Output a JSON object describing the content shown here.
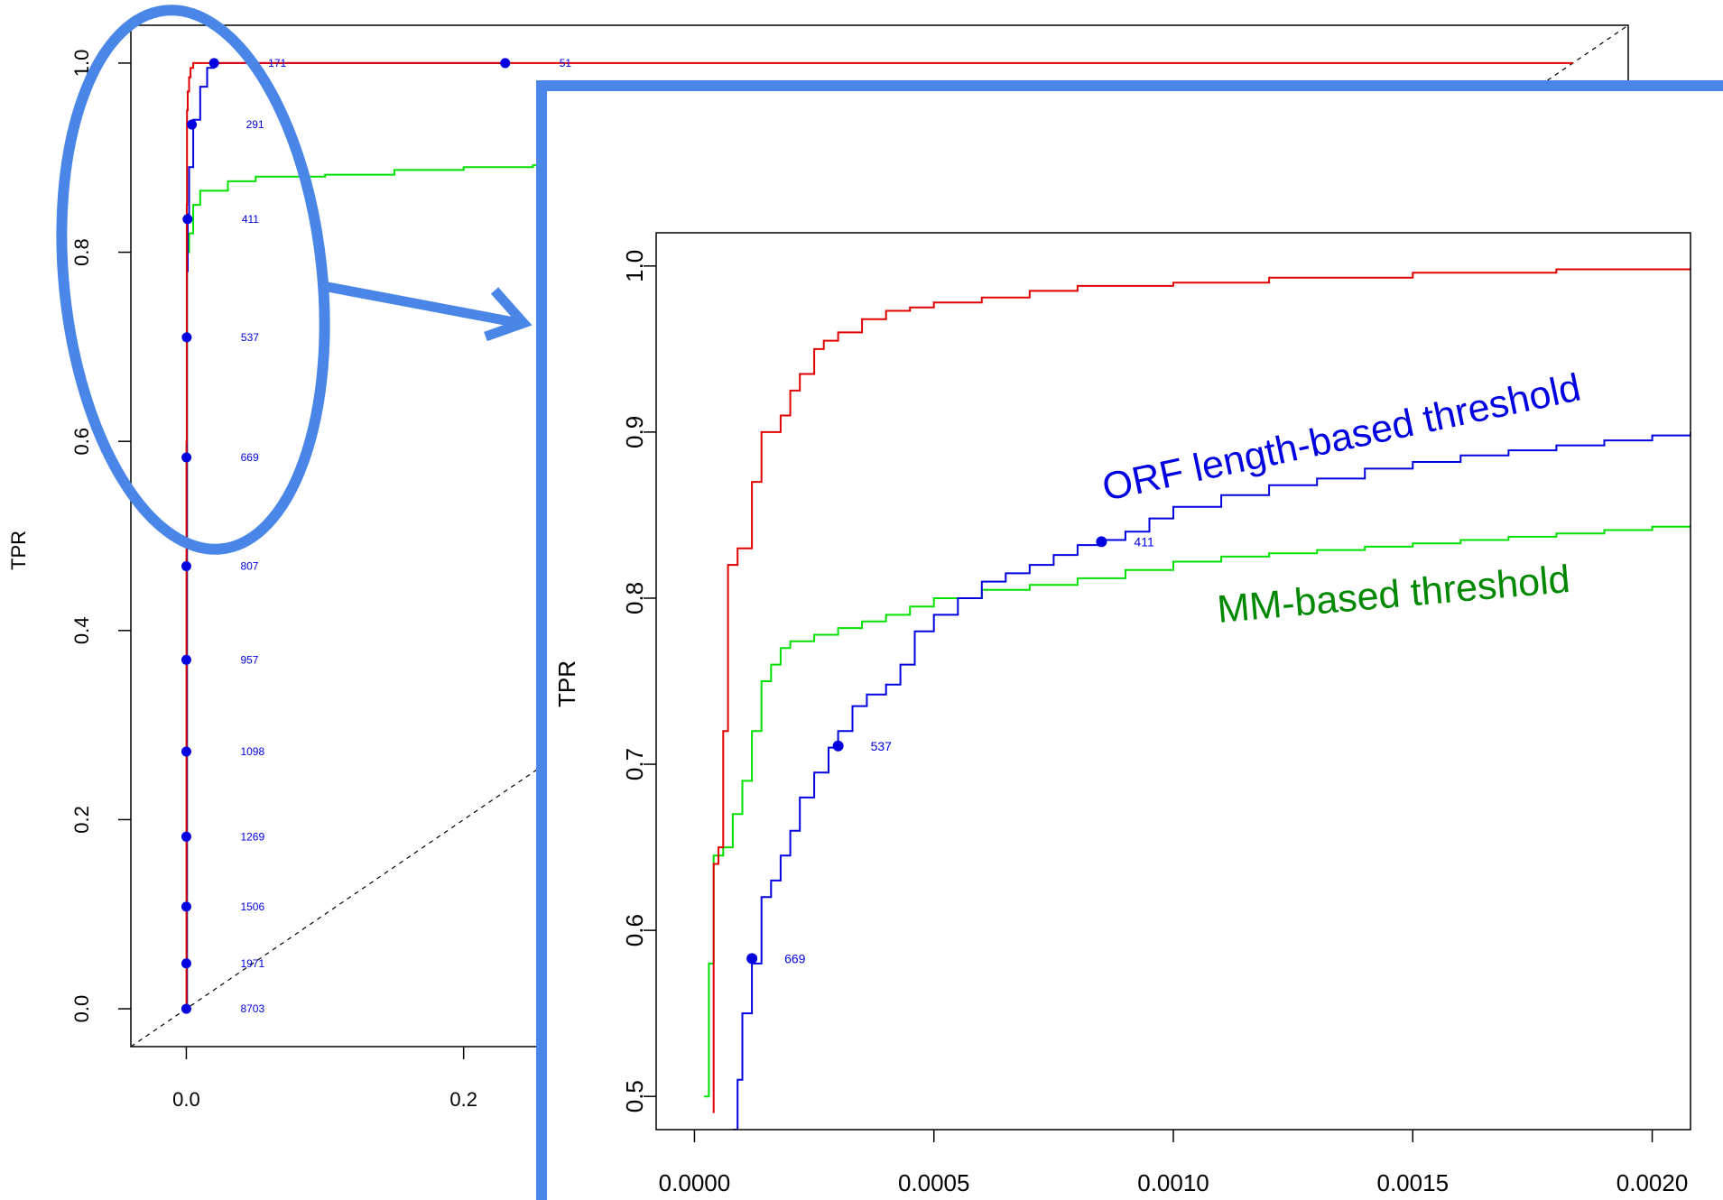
{
  "chart_data": [
    {
      "type": "line",
      "title": "",
      "xlabel": "",
      "ylabel": "TPR",
      "xlim": [
        -0.04,
        1.04
      ],
      "ylim": [
        -0.04,
        1.04
      ],
      "x_ticks": [
        0.0,
        0.2
      ],
      "x_tick_labels": [
        "0.0",
        "0.2"
      ],
      "y_ticks": [
        0.0,
        0.2,
        0.4,
        0.6,
        0.8,
        1.0
      ],
      "y_tick_labels": [
        "0.0",
        "0.2",
        "0.4",
        "0.6",
        "0.8",
        "1.0"
      ],
      "diagonal_reference": true,
      "series": [
        {
          "color": "#e00000",
          "x": [
            0.0,
            0.0001,
            0.0003,
            0.0005,
            0.001,
            0.002,
            0.003,
            0.005,
            0.5,
            0.93,
            1.0
          ],
          "y": [
            0.0,
            0.6,
            0.85,
            0.95,
            0.97,
            0.985,
            0.995,
            1.0,
            1.0,
            1.0,
            1.0
          ]
        },
        {
          "color": "#0000e0",
          "x": [
            0.0,
            0.0005,
            0.001,
            0.002,
            0.005,
            0.01,
            0.015,
            0.02,
            0.23
          ],
          "y": [
            0.0,
            0.78,
            0.84,
            0.89,
            0.94,
            0.975,
            0.995,
            1.0,
            1.0
          ]
        },
        {
          "color": "#00e000",
          "x": [
            0.0,
            0.0005,
            0.002,
            0.005,
            0.01,
            0.03,
            0.05,
            0.1,
            0.15,
            0.2,
            0.25,
            0.3
          ],
          "y": [
            0.0,
            0.8,
            0.82,
            0.85,
            0.865,
            0.875,
            0.88,
            0.882,
            0.887,
            0.89,
            0.892,
            0.893
          ]
        }
      ],
      "threshold_points": [
        {
          "label": "51",
          "x": 0.23,
          "y": 1.0
        },
        {
          "label": "171",
          "x": 0.02,
          "y": 1.0
        },
        {
          "label": "291",
          "x": 0.004,
          "y": 0.935
        },
        {
          "label": "411",
          "x": 0.0009,
          "y": 0.835
        },
        {
          "label": "537",
          "x": 0.0003,
          "y": 0.71
        },
        {
          "label": "669",
          "x": 0.0001,
          "y": 0.583
        },
        {
          "label": "807",
          "x": 0.0,
          "y": 0.468
        },
        {
          "label": "957",
          "x": 0.0,
          "y": 0.369
        },
        {
          "label": "1098",
          "x": 0.0,
          "y": 0.272
        },
        {
          "label": "1269",
          "x": 0.0,
          "y": 0.182
        },
        {
          "label": "1506",
          "x": 0.0,
          "y": 0.108
        },
        {
          "label": "1971",
          "x": 0.0,
          "y": 0.048
        },
        {
          "label": "8703",
          "x": 0.0,
          "y": 0.0
        }
      ]
    },
    {
      "type": "line",
      "title": "",
      "xlabel": "",
      "ylabel": "TPR",
      "xlim": [
        -8e-05,
        0.00208
      ],
      "ylim": [
        0.48,
        1.02
      ],
      "x_ticks": [
        0.0,
        0.0005,
        0.001,
        0.0015,
        0.002
      ],
      "x_tick_labels": [
        "0.0000",
        "0.0005",
        "0.0010",
        "0.0015",
        "0.0020"
      ],
      "y_ticks": [
        0.5,
        0.6,
        0.7,
        0.8,
        0.9,
        1.0
      ],
      "y_tick_labels": [
        "0.5",
        "0.6",
        "0.7",
        "0.8",
        "0.9",
        "1.0"
      ],
      "series": [
        {
          "color": "#e00000",
          "x": [
            4e-05,
            4e-05,
            5e-05,
            6e-05,
            7e-05,
            8e-05,
            9e-05,
            0.0001,
            0.00012,
            0.00014,
            0.00015,
            0.00018,
            0.0002,
            0.00022,
            0.00025,
            0.00027,
            0.0003,
            0.00035,
            0.0004,
            0.00045,
            0.0005,
            0.0006,
            0.0007,
            0.0008,
            0.001,
            0.0012,
            0.0015,
            0.0018,
            0.00208
          ],
          "y": [
            0.49,
            0.64,
            0.65,
            0.72,
            0.82,
            0.82,
            0.83,
            0.83,
            0.87,
            0.9,
            0.9,
            0.91,
            0.925,
            0.935,
            0.95,
            0.955,
            0.96,
            0.968,
            0.973,
            0.975,
            0.978,
            0.981,
            0.985,
            0.988,
            0.99,
            0.993,
            0.996,
            0.998,
            0.999
          ]
        },
        {
          "color": "#0000e0",
          "x": [
            8e-05,
            9e-05,
            0.0001,
            0.00012,
            0.00014,
            0.00016,
            0.00018,
            0.0002,
            0.00022,
            0.00025,
            0.00028,
            0.0003,
            0.00033,
            0.00036,
            0.0004,
            0.00043,
            0.00046,
            0.0005,
            0.00055,
            0.0006,
            0.00065,
            0.0007,
            0.00075,
            0.0008,
            0.00085,
            0.0009,
            0.00095,
            0.001,
            0.0011,
            0.0012,
            0.0013,
            0.0014,
            0.0015,
            0.0016,
            0.0017,
            0.0018,
            0.0019,
            0.002,
            0.00208
          ],
          "y": [
            0.48,
            0.51,
            0.55,
            0.58,
            0.62,
            0.63,
            0.645,
            0.66,
            0.68,
            0.695,
            0.71,
            0.72,
            0.735,
            0.742,
            0.748,
            0.76,
            0.78,
            0.79,
            0.8,
            0.81,
            0.815,
            0.82,
            0.826,
            0.832,
            0.835,
            0.84,
            0.848,
            0.855,
            0.862,
            0.868,
            0.872,
            0.878,
            0.882,
            0.886,
            0.889,
            0.892,
            0.895,
            0.898,
            0.9
          ]
        },
        {
          "color": "#00e000",
          "x": [
            2e-05,
            3e-05,
            4e-05,
            6e-05,
            8e-05,
            0.0001,
            0.00012,
            0.00014,
            0.00016,
            0.00018,
            0.0002,
            0.00025,
            0.0003,
            0.00035,
            0.0004,
            0.00045,
            0.0005,
            0.0006,
            0.0007,
            0.0008,
            0.0009,
            0.001,
            0.0011,
            0.0012,
            0.0013,
            0.0014,
            0.0015,
            0.0016,
            0.0017,
            0.0018,
            0.0019,
            0.002,
            0.00208
          ],
          "y": [
            0.5,
            0.58,
            0.645,
            0.65,
            0.67,
            0.69,
            0.72,
            0.75,
            0.76,
            0.77,
            0.774,
            0.778,
            0.782,
            0.786,
            0.79,
            0.795,
            0.8,
            0.805,
            0.808,
            0.812,
            0.817,
            0.822,
            0.825,
            0.827,
            0.829,
            0.831,
            0.833,
            0.835,
            0.837,
            0.839,
            0.841,
            0.843,
            0.844
          ]
        }
      ],
      "threshold_points": [
        {
          "label": "411",
          "x": 0.00085,
          "y": 0.834
        },
        {
          "label": "537",
          "x": 0.0003,
          "y": 0.711
        },
        {
          "label": "669",
          "x": 0.00012,
          "y": 0.583
        }
      ],
      "annotations": [
        {
          "text": "ORF length-based threshold",
          "color": "#0000e0"
        },
        {
          "text": "MM-based threshold",
          "color": "#008800"
        }
      ]
    }
  ],
  "colors": {
    "highlight": "#4a86e8",
    "point": "#0000e0"
  }
}
